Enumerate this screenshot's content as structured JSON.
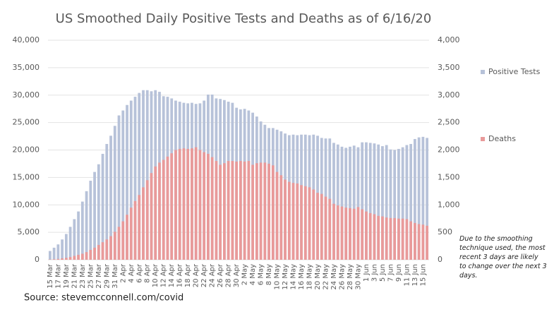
{
  "chart_data": {
    "type": "bar",
    "title": "US Smoothed Daily Positive Tests and Deaths as of 6/16/20",
    "source": "Source: stevemcconnell.com/covid",
    "note": "Due to the smoothing technique used, the most recent 3 days are likely to change over the next 3 days.",
    "categories": [
      "15 Mar",
      null,
      "17 Mar",
      null,
      "19 Mar",
      null,
      "21 Mar",
      null,
      "23 Mar",
      null,
      "25 Mar",
      null,
      "27 Mar",
      null,
      "29 Mar",
      null,
      "31 Mar",
      null,
      "2 Apr",
      null,
      "4 Apr",
      null,
      "6 Apr",
      null,
      "8 Apr",
      null,
      "10 Apr",
      null,
      "12 Apr",
      null,
      "14 Apr",
      null,
      "16 Apr",
      null,
      "18 Apr",
      null,
      "20 Apr",
      null,
      "22 Apr",
      null,
      "24 Apr",
      null,
      "26 Apr",
      null,
      "28 Apr",
      null,
      "30 Apr",
      null,
      "2 May",
      null,
      "4 May",
      null,
      "6 May",
      null,
      "8 May",
      null,
      "10 May",
      null,
      "12 May",
      null,
      "14 May",
      null,
      "16 May",
      null,
      "18 May",
      null,
      "20 May",
      null,
      "22 May",
      null,
      "24 May",
      null,
      "26 May",
      null,
      "28 May",
      null,
      "30 May",
      null,
      "1 Jun",
      null,
      "3 Jun",
      null,
      "5 Jun",
      null,
      "7 Jun",
      null,
      "9 Jun",
      null,
      "11 Jun",
      null,
      "13 Jun",
      null,
      "15 Jun",
      null
    ],
    "series": [
      {
        "name": "Positive Tests",
        "color": "#b7c2d9",
        "axis": "y",
        "values": [
          1600,
          2200,
          2800,
          3700,
          4700,
          6000,
          7400,
          8800,
          10600,
          12500,
          14400,
          16000,
          17400,
          19300,
          21100,
          22600,
          24400,
          26300,
          27200,
          28200,
          29000,
          29700,
          30400,
          30900,
          30900,
          30700,
          30900,
          30600,
          29800,
          29700,
          29400,
          29000,
          28800,
          28600,
          28500,
          28600,
          28400,
          28500,
          29000,
          30100,
          30100,
          29400,
          29300,
          29100,
          28800,
          28600,
          27700,
          27400,
          27500,
          27200,
          26800,
          26100,
          25200,
          24600,
          24000,
          24000,
          23700,
          23400,
          23000,
          22700,
          22800,
          22700,
          22800,
          22800,
          22700,
          22800,
          22600,
          22200,
          22100,
          22100,
          21300,
          21000,
          20600,
          20400,
          20600,
          20800,
          20500,
          21400,
          21400,
          21300,
          21200,
          21000,
          20700,
          20900,
          20100,
          20000,
          20200,
          20500,
          20900,
          21100,
          22000,
          22300,
          22400,
          22200
        ]
      },
      {
        "name": "Deaths",
        "color": "#e99a9a",
        "axis": "y2",
        "values": [
          5,
          10,
          15,
          25,
          35,
          50,
          70,
          90,
          110,
          140,
          180,
          220,
          270,
          320,
          370,
          430,
          510,
          600,
          700,
          820,
          950,
          1070,
          1180,
          1320,
          1450,
          1580,
          1700,
          1770,
          1820,
          1880,
          1940,
          2000,
          2020,
          2030,
          2020,
          2030,
          2050,
          2000,
          1960,
          1930,
          1870,
          1800,
          1730,
          1760,
          1800,
          1800,
          1790,
          1800,
          1790,
          1800,
          1730,
          1760,
          1770,
          1770,
          1750,
          1720,
          1600,
          1540,
          1460,
          1420,
          1400,
          1390,
          1360,
          1340,
          1320,
          1280,
          1220,
          1200,
          1150,
          1110,
          1020,
          990,
          970,
          950,
          940,
          930,
          960,
          920,
          880,
          850,
          830,
          800,
          790,
          770,
          760,
          760,
          750,
          750,
          740,
          700,
          670,
          650,
          640,
          620
        ]
      }
    ],
    "ylim": [
      0,
      40000
    ],
    "yticks": [
      0,
      {
        "value": 5000,
        "label": "5,000"
      },
      {
        "value": 10000,
        "label": "10,000"
      },
      {
        "value": 15000,
        "label": "15,000"
      },
      {
        "value": 20000,
        "label": "20,000"
      },
      {
        "value": 25000,
        "label": "25,000"
      },
      {
        "value": 30000,
        "label": "30,000"
      },
      {
        "value": 35000,
        "label": "35,000"
      },
      {
        "value": 40000,
        "label": "40,000"
      }
    ],
    "y2lim": [
      0,
      4000
    ],
    "y2ticks": [
      0,
      500,
      {
        "value": 1000,
        "label": "1,000"
      },
      {
        "value": 1500,
        "label": "1,500"
      },
      {
        "value": 2000,
        "label": "2,000"
      },
      {
        "value": 2500,
        "label": "2,500"
      },
      {
        "value": 3000,
        "label": "3,000"
      },
      {
        "value": 3500,
        "label": "3,500"
      },
      {
        "value": 4000,
        "label": "4,000"
      }
    ],
    "grid": true
  }
}
